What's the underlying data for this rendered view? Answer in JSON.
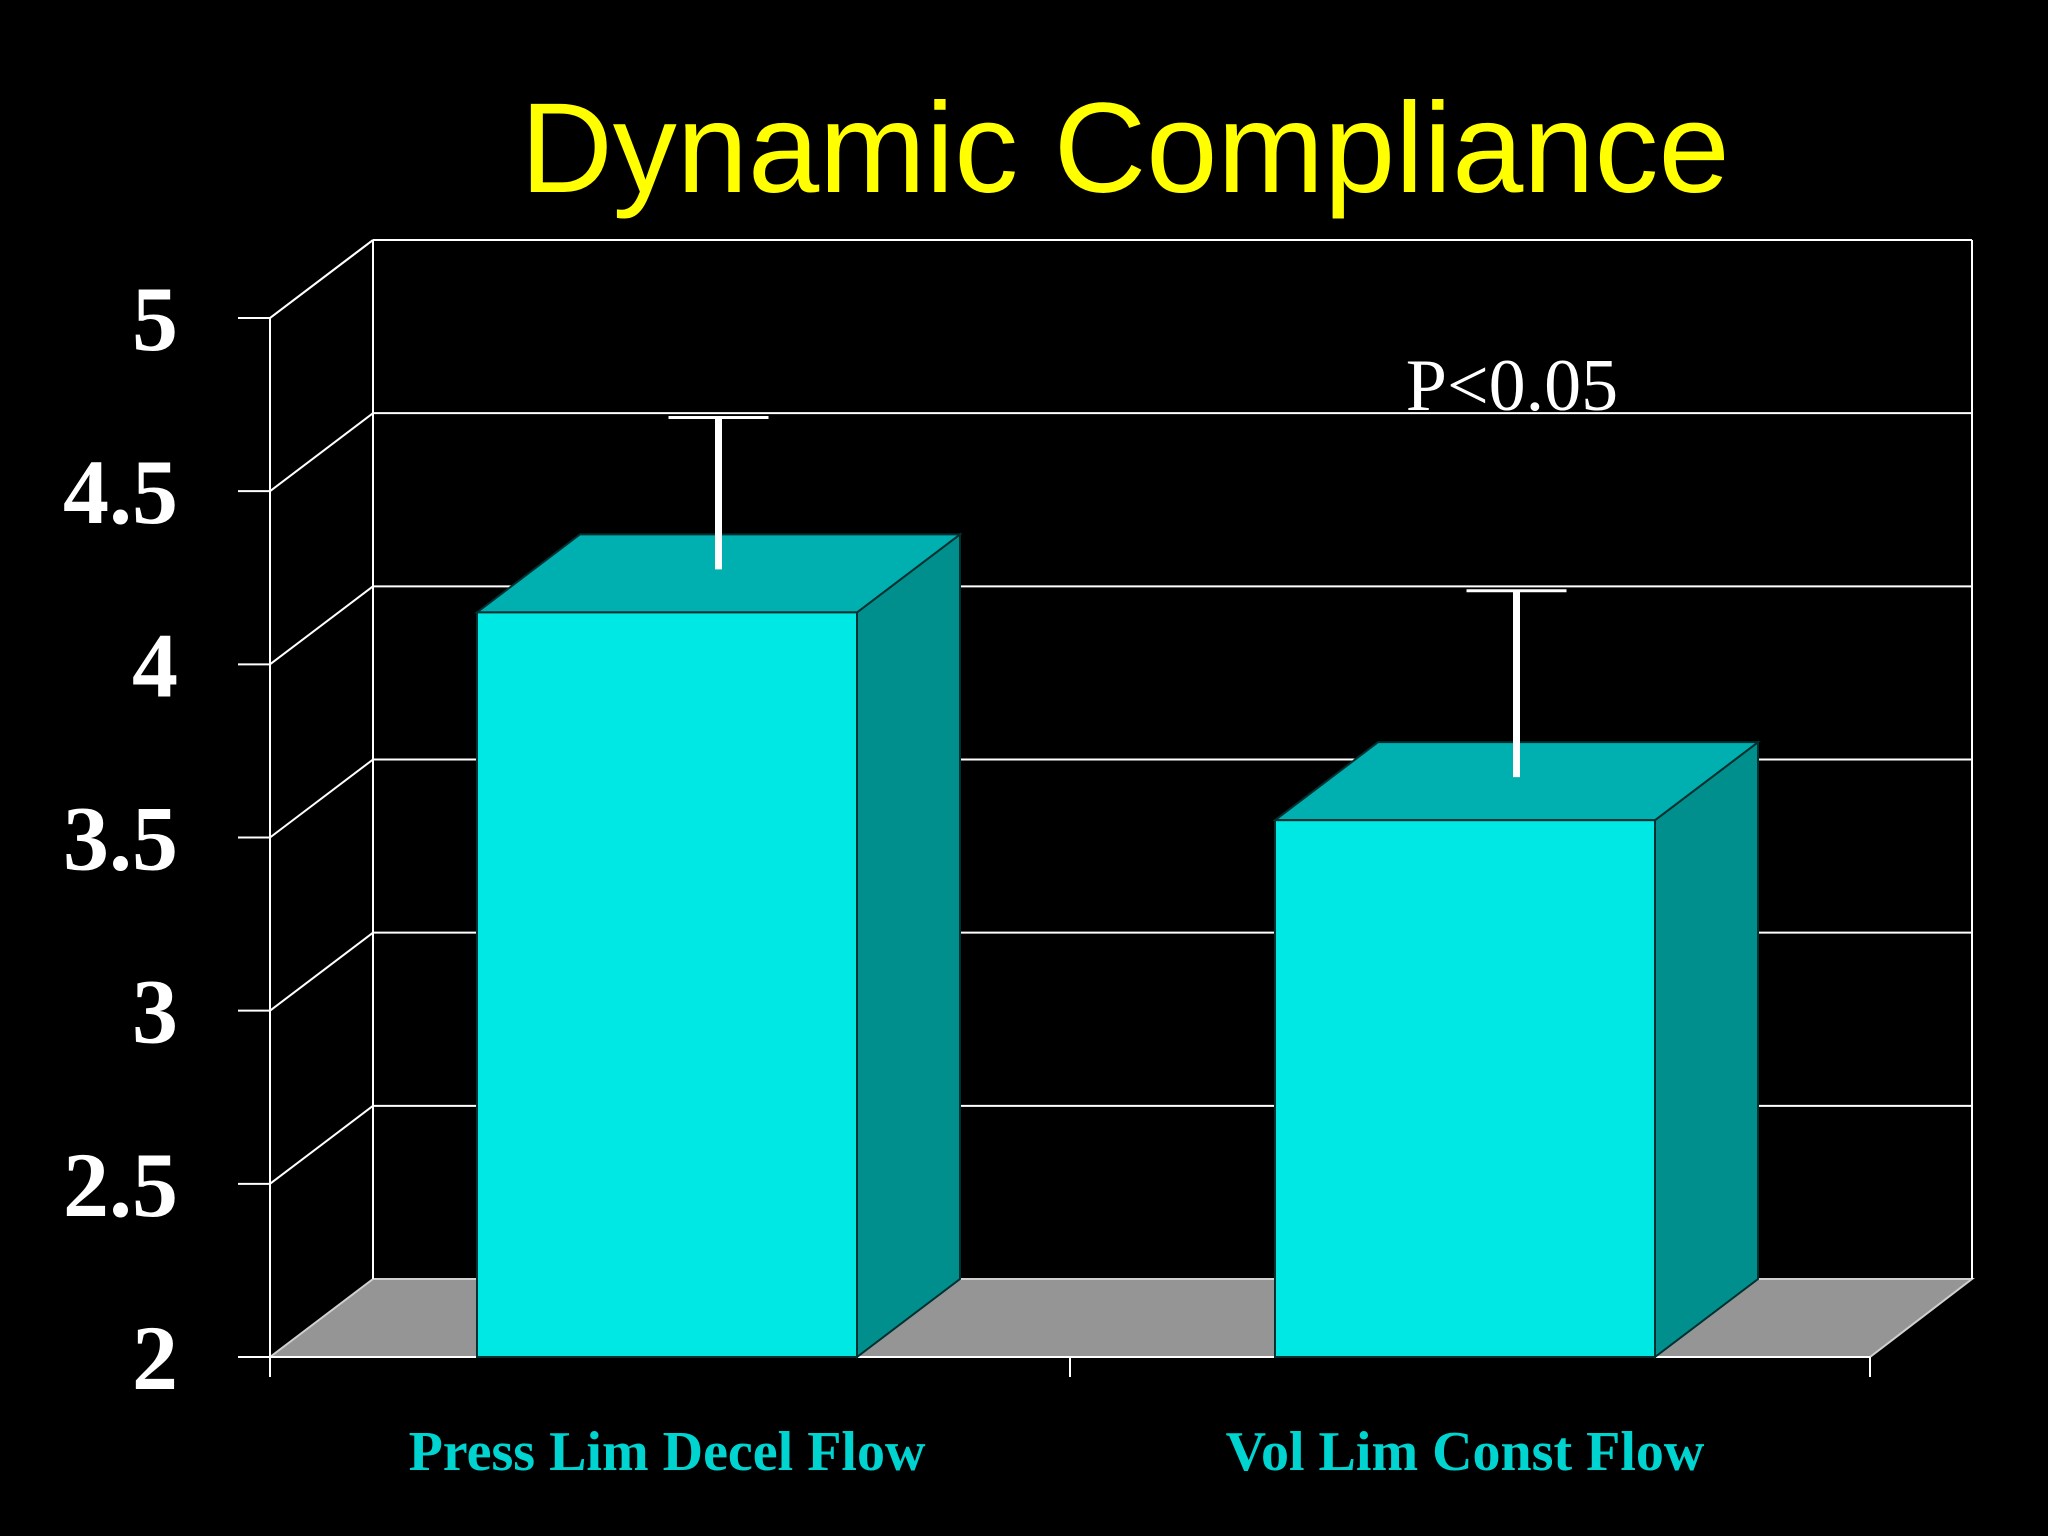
{
  "chart_data": {
    "type": "bar",
    "title": "Dynamic Compliance",
    "categories": [
      "Press Lim Decel Flow",
      "Vol Lim Const Flow"
    ],
    "values": [
      4.15,
      3.55
    ],
    "error_upper": [
      4.6,
      4.1
    ],
    "ylim": [
      2,
      5
    ],
    "yticks": [
      "2",
      "2.5",
      "3",
      "3.5",
      "4",
      "4.5",
      "5"
    ],
    "annotation": "P<0.05",
    "grid": true,
    "colors": {
      "background": "#000000",
      "title": "#ffff00",
      "bar_front": "#00e8e4",
      "bar_top": "#00b0b0",
      "bar_side": "#008f8c",
      "floor": "#959595",
      "category_label": "#00d4d0"
    }
  }
}
